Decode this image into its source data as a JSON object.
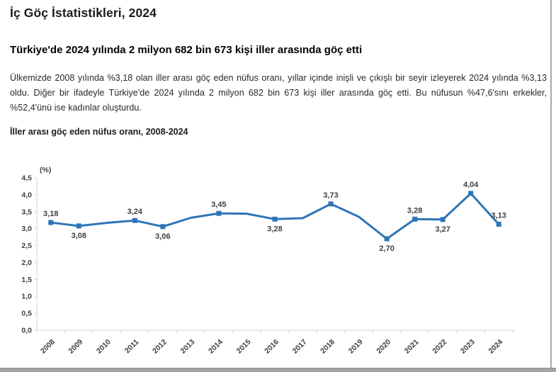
{
  "page": {
    "title": "İç Göç İstatistikleri, 2024",
    "subtitle": "Türkiye'de 2024 yılında 2 milyon 682 bin 673 kişi iller arasında göç etti",
    "body_paragraph": "Ülkemizde 2008 yılında %3,18 olan iller arası göç eden nüfus oranı, yıllar içinde inişli ve çıkışlı bir seyir izleyerek 2024 yılında %3,13 oldu. Diğer bir ifadeyle Türkiye'de 2024 yılında 2 milyon 682 bin 673 kişi iller arasında göç etti. Bu nüfusun %47,6'sını erkekler, %52,4'ünü ise kadınlar oluşturdu.",
    "chart_heading": "İller arası göç eden nüfus oranı, 2008-2024"
  },
  "chart_data": {
    "type": "line",
    "title": "İller arası göç eden nüfus oranı, 2008-2024",
    "unit_label": "(%)",
    "categories": [
      "2008",
      "2009",
      "2010",
      "2011",
      "2012",
      "2013",
      "2014",
      "2015",
      "2016",
      "2017",
      "2018",
      "2019",
      "2020",
      "2021",
      "2022",
      "2023",
      "2024"
    ],
    "series": [
      {
        "name": "İller arası göç eden nüfus oranı (%)",
        "values": [
          3.18,
          3.08,
          3.17,
          3.24,
          3.06,
          3.32,
          3.45,
          3.44,
          3.28,
          3.31,
          3.73,
          3.35,
          2.7,
          3.28,
          3.27,
          4.04,
          3.13
        ],
        "point_labels": [
          "3,18",
          "3,08",
          null,
          "3,24",
          "3,06",
          null,
          "3,45",
          null,
          "3,28",
          null,
          "3,73",
          null,
          "2,70",
          "3,28",
          "3,27",
          "4,04",
          "3,13"
        ],
        "label_positions": [
          "above",
          "below",
          null,
          "above",
          "below",
          null,
          "above",
          null,
          "below",
          null,
          "above",
          null,
          "below",
          "above",
          "below",
          "above",
          "above"
        ]
      }
    ],
    "xlabel": "",
    "ylabel": "(%)",
    "ylim": [
      0,
      4.5
    ],
    "ytick_labels": [
      "0,0",
      "0,5",
      "1,0",
      "1,5",
      "2,0",
      "2,5",
      "3,0",
      "3,5",
      "4,0",
      "4,5"
    ],
    "line_color": "#2e75b6",
    "label_color": "#3f3f3f",
    "axis_color": "#d6d6d6",
    "grid": false,
    "legend_position": "none"
  }
}
